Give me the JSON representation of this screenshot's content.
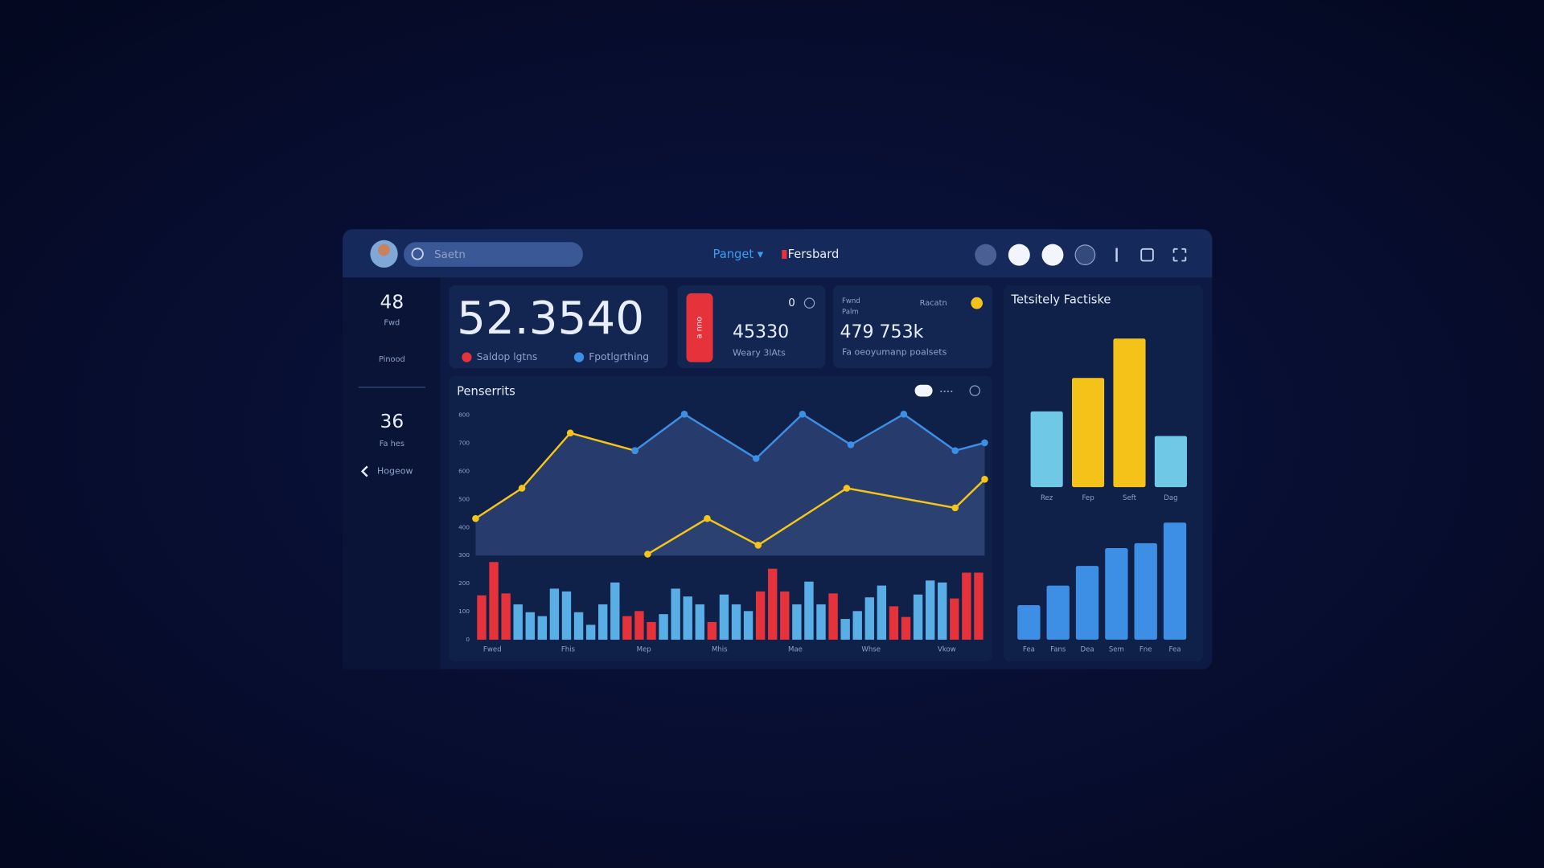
{
  "top_bar": {
    "search_placeholder": "Saetn",
    "nav": [
      "Panget ▾",
      "Fersbard"
    ]
  },
  "sidebar": {
    "items": [
      {
        "value": 48,
        "label": "Fwd"
      },
      {
        "label": "Pinood"
      },
      {
        "value": 36,
        "label": "Fa hes"
      },
      {
        "label": "Hogeow"
      }
    ]
  },
  "cards": [
    {
      "value": "52.3540",
      "legend": [
        {
          "label": "Saldop lgtns",
          "color": "#e5323b"
        },
        {
          "label": "Fpotlgrthing",
          "color": "#3d8fe6"
        }
      ]
    },
    {
      "badge": "a nno",
      "value": 45330,
      "caption": "Weary 3lAts",
      "corner": 0
    },
    {
      "top_left": [
        "Fwnd",
        "Palm"
      ],
      "top_right": "Racatn",
      "value": "479 753k",
      "caption": "Fa oeoyumanp poalsets"
    }
  ],
  "chart_data": [
    {
      "type": "line",
      "title": "Penserrits",
      "toggle_label": "••••",
      "xlim": [
        0,
        100
      ],
      "ylim": [
        0,
        800
      ],
      "yticks": [
        0,
        100,
        200,
        300,
        400,
        500,
        600,
        700,
        800
      ],
      "grid": false,
      "xlabels": [
        "Fwed",
        "Fhis",
        "Mep",
        "Mhis",
        "Mae",
        "Whse",
        "Vkow"
      ],
      "series": [
        {
          "color": "#f5c518",
          "x": [
            0,
            9.1,
            18.6,
            31.3,
            32.5,
            33.8,
            45.5,
            55.5,
            72.9,
            94.2,
            100
          ],
          "values": [
            432,
            540,
            737,
            674,
            null,
            305,
            432,
            337,
            540,
            470,
            572
          ]
        },
        {
          "color": "#3d8fe6",
          "x": [
            31.3,
            41.0,
            55.1,
            64.2,
            73.7,
            84.1,
            94.2,
            100
          ],
          "values": [
            674,
            804,
            646,
            804,
            695,
            804,
            674,
            702
          ]
        }
      ],
      "bars": {
        "values": [
          158,
          277,
          165,
          126,
          98,
          84,
          182,
          172,
          98,
          53,
          126,
          204,
          84,
          102,
          63,
          91,
          182,
          154,
          126,
          63,
          161,
          126,
          102,
          172,
          253,
          172,
          126,
          207,
          126,
          165,
          74,
          102,
          151,
          193,
          119,
          81,
          161,
          211,
          204,
          147,
          239,
          239
        ],
        "colors": [
          "#e5323b",
          "#e5323b",
          "#e5323b",
          "#5aaee6",
          "#5aaee6",
          "#5aaee6",
          "#5aaee6",
          "#5aaee6",
          "#5aaee6",
          "#5aaee6",
          "#5aaee6",
          "#5aaee6",
          "#e5323b",
          "#e5323b",
          "#e5323b",
          "#5aaee6",
          "#5aaee6",
          "#5aaee6",
          "#5aaee6",
          "#e5323b",
          "#5aaee6",
          "#5aaee6",
          "#5aaee6",
          "#e5323b",
          "#e5323b",
          "#e5323b",
          "#5aaee6",
          "#5aaee6",
          "#5aaee6",
          "#e5323b",
          "#5aaee6",
          "#5aaee6",
          "#5aaee6",
          "#5aaee6",
          "#e5323b",
          "#e5323b",
          "#5aaee6",
          "#5aaee6",
          "#5aaee6",
          "#e5323b",
          "#e5323b",
          "#e5323b"
        ]
      }
    },
    {
      "type": "bar",
      "title": "Tetsitely Factiske",
      "categories": [
        "Rez",
        "Fep",
        "Seft",
        "Dag"
      ],
      "values": [
        77,
        111,
        151,
        52
      ],
      "colors": [
        "#6ec8e6",
        "#f5c21a",
        "#f5c21a",
        "#6ec8e6"
      ],
      "ylim": [
        0,
        160
      ]
    },
    {
      "type": "bar",
      "categories": [
        "Fea",
        "Fans",
        "Dea",
        "Sem",
        "Fne",
        "Fea"
      ],
      "values": [
        35,
        55,
        75,
        93,
        98,
        119
      ],
      "color": "#3d8fe6",
      "ylim": [
        0,
        120
      ]
    }
  ]
}
